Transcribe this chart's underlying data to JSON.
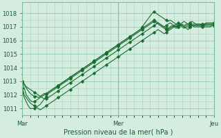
{
  "title": "",
  "xlabel": "Pression niveau de la mer( hPa )",
  "background_color": "#d4ede0",
  "grid_color": "#7abf98",
  "text_color": "#1a5c2a",
  "line_color": "#1a6b30",
  "ylim": [
    1010.5,
    1018.8
  ],
  "yticks": [
    1011,
    1012,
    1013,
    1014,
    1015,
    1016,
    1017,
    1018
  ],
  "yticks_minor": [
    1011.5,
    1012.5,
    1013.5,
    1014.5,
    1015.5,
    1016.5,
    1017.5
  ],
  "xtick_labels": [
    "Mar",
    "Mer",
    "Jeu"
  ],
  "xtick_positions": [
    0,
    48,
    96
  ],
  "num_points": 97,
  "series": [
    {
      "values": [
        1013.0,
        1012.8,
        1012.6,
        1012.5,
        1012.4,
        1012.3,
        1012.2,
        1012.1,
        1012.0,
        1011.9,
        1011.8,
        1011.7,
        1011.7,
        1011.8,
        1011.9,
        1012.0,
        1012.1,
        1012.2,
        1012.3,
        1012.4,
        1012.5,
        1012.6,
        1012.7,
        1012.8,
        1012.9,
        1013.0,
        1013.1,
        1013.2,
        1013.3,
        1013.4,
        1013.5,
        1013.6,
        1013.7,
        1013.8,
        1013.9,
        1014.0,
        1014.1,
        1014.2,
        1014.3,
        1014.4,
        1014.5,
        1014.6,
        1014.7,
        1014.8,
        1014.9,
        1015.0,
        1015.1,
        1015.2,
        1015.3,
        1015.4,
        1015.5,
        1015.6,
        1015.7,
        1015.8,
        1015.9,
        1016.0,
        1016.1,
        1016.2,
        1016.3,
        1016.4,
        1016.5,
        1016.6,
        1016.7,
        1016.8,
        1016.9,
        1017.0,
        1017.1,
        1017.2,
        1017.3,
        1017.2,
        1017.1,
        1017.0,
        1016.9,
        1016.8,
        1016.9,
        1017.0,
        1017.1,
        1017.2,
        1017.3,
        1017.2,
        1017.1,
        1017.0,
        1016.9,
        1016.8,
        1017.0,
        1017.1,
        1017.1,
        1017.1,
        1017.1,
        1017.1,
        1017.1,
        1017.1,
        1017.1,
        1017.1,
        1017.1,
        1017.1,
        1017.1
      ]
    },
    {
      "values": [
        1013.0,
        1012.5,
        1012.0,
        1011.8,
        1011.6,
        1011.5,
        1011.5,
        1011.6,
        1011.7,
        1011.8,
        1011.9,
        1012.0,
        1012.1,
        1012.2,
        1012.3,
        1012.4,
        1012.5,
        1012.6,
        1012.7,
        1012.8,
        1012.9,
        1013.0,
        1013.1,
        1013.2,
        1013.3,
        1013.4,
        1013.5,
        1013.6,
        1013.7,
        1013.8,
        1013.9,
        1014.0,
        1014.1,
        1014.2,
        1014.3,
        1014.4,
        1014.5,
        1014.6,
        1014.7,
        1014.8,
        1014.9,
        1015.0,
        1015.1,
        1015.2,
        1015.3,
        1015.4,
        1015.5,
        1015.6,
        1015.7,
        1015.8,
        1015.9,
        1016.0,
        1016.1,
        1016.2,
        1016.3,
        1016.4,
        1016.5,
        1016.6,
        1016.7,
        1016.8,
        1017.0,
        1017.2,
        1017.4,
        1017.6,
        1017.8,
        1018.0,
        1018.1,
        1018.0,
        1017.9,
        1017.8,
        1017.7,
        1017.6,
        1017.5,
        1017.4,
        1017.5,
        1017.4,
        1017.3,
        1017.2,
        1017.1,
        1017.2,
        1017.3,
        1017.4,
        1017.3,
        1017.2,
        1017.3,
        1017.4,
        1017.3,
        1017.2,
        1017.2,
        1017.2,
        1017.2,
        1017.2,
        1017.3,
        1017.3,
        1017.3,
        1017.3,
        1017.3
      ]
    },
    {
      "values": [
        1012.2,
        1011.8,
        1011.5,
        1011.2,
        1011.0,
        1011.0,
        1011.0,
        1011.1,
        1011.2,
        1011.3,
        1011.5,
        1011.7,
        1011.9,
        1012.1,
        1012.2,
        1012.3,
        1012.4,
        1012.5,
        1012.6,
        1012.7,
        1012.8,
        1012.9,
        1013.0,
        1013.1,
        1013.2,
        1013.3,
        1013.4,
        1013.5,
        1013.6,
        1013.7,
        1013.8,
        1013.9,
        1014.0,
        1014.1,
        1014.2,
        1014.3,
        1014.4,
        1014.5,
        1014.6,
        1014.7,
        1014.8,
        1014.9,
        1015.0,
        1015.1,
        1015.2,
        1015.3,
        1015.4,
        1015.5,
        1015.6,
        1015.7,
        1015.8,
        1015.9,
        1016.0,
        1016.1,
        1016.2,
        1016.3,
        1016.4,
        1016.5,
        1016.6,
        1016.7,
        1016.8,
        1016.9,
        1017.0,
        1017.1,
        1017.2,
        1017.3,
        1017.4,
        1017.3,
        1017.2,
        1017.1,
        1017.0,
        1016.9,
        1016.8,
        1016.9,
        1017.0,
        1017.1,
        1017.0,
        1016.9,
        1017.0,
        1017.1,
        1017.0,
        1016.9,
        1017.0,
        1017.0,
        1017.0,
        1017.1,
        1017.0,
        1017.0,
        1017.0,
        1017.0,
        1017.0,
        1017.0,
        1017.0,
        1017.0,
        1017.0,
        1017.1,
        1017.1
      ]
    },
    {
      "values": [
        1012.5,
        1012.0,
        1011.8,
        1011.6,
        1011.4,
        1011.3,
        1011.2,
        1011.1,
        1011.0,
        1010.9,
        1011.0,
        1011.1,
        1011.2,
        1011.3,
        1011.4,
        1011.5,
        1011.6,
        1011.7,
        1011.8,
        1011.9,
        1012.0,
        1012.1,
        1012.2,
        1012.3,
        1012.4,
        1012.5,
        1012.6,
        1012.7,
        1012.8,
        1012.9,
        1013.0,
        1013.1,
        1013.2,
        1013.3,
        1013.4,
        1013.5,
        1013.6,
        1013.7,
        1013.8,
        1013.9,
        1014.0,
        1014.1,
        1014.2,
        1014.3,
        1014.4,
        1014.5,
        1014.6,
        1014.7,
        1014.8,
        1014.9,
        1015.0,
        1015.1,
        1015.2,
        1015.3,
        1015.4,
        1015.5,
        1015.6,
        1015.7,
        1015.8,
        1015.9,
        1016.0,
        1016.1,
        1016.2,
        1016.3,
        1016.4,
        1016.5,
        1016.6,
        1016.7,
        1016.8,
        1016.7,
        1016.6,
        1016.5,
        1016.6,
        1016.7,
        1016.8,
        1016.9,
        1017.0,
        1017.1,
        1017.0,
        1017.1,
        1017.2,
        1017.1,
        1017.2,
        1017.2,
        1017.2,
        1017.2,
        1017.2,
        1017.2,
        1017.2,
        1017.2,
        1017.2,
        1017.2,
        1017.2,
        1017.2,
        1017.2,
        1017.2,
        1017.3
      ]
    },
    {
      "values": [
        1013.0,
        1012.8,
        1012.5,
        1012.3,
        1012.1,
        1012.0,
        1011.9,
        1011.9,
        1011.8,
        1011.9,
        1012.0,
        1012.1,
        1012.1,
        1012.2,
        1012.3,
        1012.4,
        1012.5,
        1012.6,
        1012.7,
        1012.8,
        1012.9,
        1013.0,
        1013.1,
        1013.2,
        1013.3,
        1013.4,
        1013.5,
        1013.6,
        1013.7,
        1013.8,
        1013.9,
        1014.0,
        1014.1,
        1014.2,
        1014.3,
        1014.4,
        1014.5,
        1014.6,
        1014.7,
        1014.8,
        1014.9,
        1015.0,
        1015.1,
        1015.2,
        1015.3,
        1015.4,
        1015.5,
        1015.6,
        1015.7,
        1015.8,
        1015.9,
        1016.0,
        1016.1,
        1016.2,
        1016.3,
        1016.4,
        1016.5,
        1016.6,
        1016.7,
        1016.8,
        1016.9,
        1017.0,
        1017.1,
        1017.2,
        1017.3,
        1017.4,
        1017.5,
        1017.4,
        1017.3,
        1017.2,
        1017.1,
        1017.0,
        1017.1,
        1017.2,
        1017.3,
        1017.2,
        1017.1,
        1017.0,
        1017.1,
        1017.2,
        1017.1,
        1017.0,
        1017.1,
        1017.1,
        1017.1,
        1017.1,
        1017.1,
        1017.1,
        1017.1,
        1017.1,
        1017.1,
        1017.1,
        1017.2,
        1017.2,
        1017.2,
        1017.2,
        1017.2
      ]
    }
  ],
  "marker_every": 6,
  "marker_size": 2.5,
  "line_width": 0.8,
  "xlabel_fontsize": 7,
  "tick_labelsize": 6
}
